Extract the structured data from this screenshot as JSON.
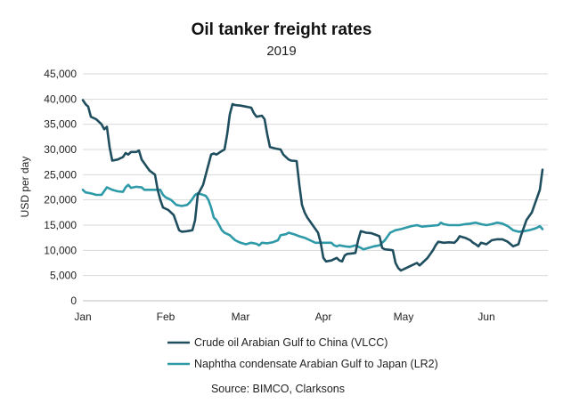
{
  "chart_data": {
    "type": "line",
    "title": "Oil tanker freight rates",
    "subtitle": "2019",
    "ylabel": "USD per day",
    "xlabel": "",
    "ylim": [
      0,
      45000
    ],
    "yticks": [
      0,
      5000,
      10000,
      15000,
      20000,
      25000,
      30000,
      35000,
      40000,
      45000
    ],
    "ytick_labels": [
      "0",
      "5,000",
      "10,000",
      "15,000",
      "20,000",
      "25,000",
      "30,000",
      "35,000",
      "40,000",
      "45,000"
    ],
    "xlim": [
      "2019-01-01",
      "2019-06-24"
    ],
    "xticks": [
      {
        "label": "Jan",
        "date": "2019-01-01"
      },
      {
        "label": "Feb",
        "date": "2019-02-01"
      },
      {
        "label": "Mar",
        "date": "2019-03-01"
      },
      {
        "label": "Apr",
        "date": "2019-04-01"
      },
      {
        "label": "May",
        "date": "2019-05-01"
      },
      {
        "label": "Jun",
        "date": "2019-06-01"
      }
    ],
    "grid": true,
    "legend_position": "bottom",
    "series": [
      {
        "name": "Crude oil Arabian Gulf to China (VLCC)",
        "color": "#1f4e5f",
        "points": [
          [
            "2019-01-01",
            39800
          ],
          [
            "2019-01-02",
            39000
          ],
          [
            "2019-01-03",
            38500
          ],
          [
            "2019-01-04",
            36500
          ],
          [
            "2019-01-06",
            36000
          ],
          [
            "2019-01-08",
            35000
          ],
          [
            "2019-01-09",
            34000
          ],
          [
            "2019-01-10",
            34500
          ],
          [
            "2019-01-11",
            30500
          ],
          [
            "2019-01-12",
            27800
          ],
          [
            "2019-01-14",
            28000
          ],
          [
            "2019-01-16",
            28500
          ],
          [
            "2019-01-17",
            29300
          ],
          [
            "2019-01-18",
            29000
          ],
          [
            "2019-01-19",
            29500
          ],
          [
            "2019-01-21",
            29500
          ],
          [
            "2019-01-22",
            29800
          ],
          [
            "2019-01-23",
            28000
          ],
          [
            "2019-01-25",
            26500
          ],
          [
            "2019-01-26",
            25800
          ],
          [
            "2019-01-28",
            25000
          ],
          [
            "2019-01-29",
            22000
          ],
          [
            "2019-01-30",
            20000
          ],
          [
            "2019-01-31",
            18500
          ],
          [
            "2019-02-02",
            18000
          ],
          [
            "2019-02-04",
            17000
          ],
          [
            "2019-02-05",
            15500
          ],
          [
            "2019-02-06",
            14000
          ],
          [
            "2019-02-07",
            13700
          ],
          [
            "2019-02-09",
            13800
          ],
          [
            "2019-02-11",
            14000
          ],
          [
            "2019-02-12",
            16000
          ],
          [
            "2019-02-13",
            21000
          ],
          [
            "2019-02-15",
            23000
          ],
          [
            "2019-02-16",
            25000
          ],
          [
            "2019-02-17",
            27000
          ],
          [
            "2019-02-18",
            29000
          ],
          [
            "2019-02-19",
            29200
          ],
          [
            "2019-02-20",
            29000
          ],
          [
            "2019-02-22",
            29700
          ],
          [
            "2019-02-23",
            30000
          ],
          [
            "2019-02-24",
            33000
          ],
          [
            "2019-02-25",
            37000
          ],
          [
            "2019-02-26",
            39000
          ],
          [
            "2019-02-27",
            38800
          ],
          [
            "2019-03-01",
            38700
          ],
          [
            "2019-03-03",
            38500
          ],
          [
            "2019-03-05",
            38300
          ],
          [
            "2019-03-06",
            37200
          ],
          [
            "2019-03-07",
            36500
          ],
          [
            "2019-03-09",
            36700
          ],
          [
            "2019-03-10",
            36000
          ],
          [
            "2019-03-11",
            33000
          ],
          [
            "2019-03-12",
            30500
          ],
          [
            "2019-03-14",
            30200
          ],
          [
            "2019-03-16",
            30000
          ],
          [
            "2019-03-17",
            29000
          ],
          [
            "2019-03-19",
            28000
          ],
          [
            "2019-03-20",
            27800
          ],
          [
            "2019-03-22",
            27700
          ],
          [
            "2019-03-23",
            23000
          ],
          [
            "2019-03-24",
            19000
          ],
          [
            "2019-03-25",
            17500
          ],
          [
            "2019-03-26",
            16500
          ],
          [
            "2019-03-28",
            15000
          ],
          [
            "2019-03-30",
            13500
          ],
          [
            "2019-03-31",
            11500
          ],
          [
            "2019-04-01",
            8500
          ],
          [
            "2019-04-02",
            7800
          ],
          [
            "2019-04-04",
            8000
          ],
          [
            "2019-04-06",
            8500
          ],
          [
            "2019-04-07",
            8000
          ],
          [
            "2019-04-08",
            7800
          ],
          [
            "2019-04-09",
            9000
          ],
          [
            "2019-04-10",
            9300
          ],
          [
            "2019-04-12",
            9400
          ],
          [
            "2019-04-13",
            9500
          ],
          [
            "2019-04-14",
            12000
          ],
          [
            "2019-04-15",
            13800
          ],
          [
            "2019-04-17",
            13500
          ],
          [
            "2019-04-19",
            13400
          ],
          [
            "2019-04-21",
            13000
          ],
          [
            "2019-04-22",
            12800
          ],
          [
            "2019-04-23",
            10500
          ],
          [
            "2019-04-24",
            10200
          ],
          [
            "2019-04-26",
            10100
          ],
          [
            "2019-04-27",
            10000
          ],
          [
            "2019-04-28",
            7500
          ],
          [
            "2019-04-29",
            6500
          ],
          [
            "2019-04-30",
            6000
          ],
          [
            "2019-05-02",
            6500
          ],
          [
            "2019-05-04",
            7000
          ],
          [
            "2019-05-06",
            7500
          ],
          [
            "2019-05-07",
            7000
          ],
          [
            "2019-05-08",
            7500
          ],
          [
            "2019-05-10",
            8500
          ],
          [
            "2019-05-12",
            10000
          ],
          [
            "2019-05-13",
            11000
          ],
          [
            "2019-05-14",
            11700
          ],
          [
            "2019-05-16",
            11500
          ],
          [
            "2019-05-18",
            11600
          ],
          [
            "2019-05-20",
            11500
          ],
          [
            "2019-05-21",
            12000
          ],
          [
            "2019-05-22",
            12800
          ],
          [
            "2019-05-24",
            12500
          ],
          [
            "2019-05-26",
            12000
          ],
          [
            "2019-05-27",
            11500
          ],
          [
            "2019-05-28",
            11200
          ],
          [
            "2019-05-29",
            10800
          ],
          [
            "2019-05-30",
            11500
          ],
          [
            "2019-06-01",
            11200
          ],
          [
            "2019-06-03",
            12000
          ],
          [
            "2019-06-05",
            12200
          ],
          [
            "2019-06-07",
            12200
          ],
          [
            "2019-06-09",
            11700
          ],
          [
            "2019-06-11",
            10800
          ],
          [
            "2019-06-13",
            11200
          ],
          [
            "2019-06-14",
            13000
          ],
          [
            "2019-06-15",
            14500
          ],
          [
            "2019-06-16",
            16000
          ],
          [
            "2019-06-18",
            17500
          ],
          [
            "2019-06-20",
            20500
          ],
          [
            "2019-06-21",
            22000
          ],
          [
            "2019-06-22",
            26000
          ]
        ]
      },
      {
        "name": "Naphtha condensate Arabian Gulf to Japan (LR2)",
        "color": "#2e9aa8",
        "points": [
          [
            "2019-01-01",
            22000
          ],
          [
            "2019-01-02",
            21500
          ],
          [
            "2019-01-04",
            21300
          ],
          [
            "2019-01-06",
            21000
          ],
          [
            "2019-01-08",
            21000
          ],
          [
            "2019-01-10",
            22500
          ],
          [
            "2019-01-12",
            22000
          ],
          [
            "2019-01-14",
            21700
          ],
          [
            "2019-01-16",
            21600
          ],
          [
            "2019-01-17",
            22500
          ],
          [
            "2019-01-18",
            23000
          ],
          [
            "2019-01-19",
            22400
          ],
          [
            "2019-01-21",
            22600
          ],
          [
            "2019-01-23",
            22500
          ],
          [
            "2019-01-24",
            22000
          ],
          [
            "2019-01-26",
            22000
          ],
          [
            "2019-01-28",
            22000
          ],
          [
            "2019-01-30",
            22000
          ],
          [
            "2019-01-31",
            21000
          ],
          [
            "2019-02-01",
            20500
          ],
          [
            "2019-02-03",
            20000
          ],
          [
            "2019-02-05",
            19000
          ],
          [
            "2019-02-07",
            18800
          ],
          [
            "2019-02-09",
            19000
          ],
          [
            "2019-02-10",
            19500
          ],
          [
            "2019-02-11",
            20200
          ],
          [
            "2019-02-12",
            21000
          ],
          [
            "2019-02-13",
            21300
          ],
          [
            "2019-02-15",
            21000
          ],
          [
            "2019-02-16",
            20800
          ],
          [
            "2019-02-17",
            20000
          ],
          [
            "2019-02-18",
            18500
          ],
          [
            "2019-02-19",
            16500
          ],
          [
            "2019-02-20",
            16000
          ],
          [
            "2019-02-21",
            15000
          ],
          [
            "2019-02-22",
            14000
          ],
          [
            "2019-02-23",
            13500
          ],
          [
            "2019-02-25",
            13000
          ],
          [
            "2019-02-26",
            12500
          ],
          [
            "2019-02-27",
            12000
          ],
          [
            "2019-03-01",
            11500
          ],
          [
            "2019-03-03",
            11200
          ],
          [
            "2019-03-05",
            11500
          ],
          [
            "2019-03-07",
            11300
          ],
          [
            "2019-03-08",
            11000
          ],
          [
            "2019-03-09",
            11500
          ],
          [
            "2019-03-11",
            11400
          ],
          [
            "2019-03-13",
            11600
          ],
          [
            "2019-03-15",
            12000
          ],
          [
            "2019-03-16",
            13000
          ],
          [
            "2019-03-18",
            13200
          ],
          [
            "2019-03-19",
            13500
          ],
          [
            "2019-03-21",
            13200
          ],
          [
            "2019-03-23",
            12800
          ],
          [
            "2019-03-25",
            12500
          ],
          [
            "2019-03-27",
            12000
          ],
          [
            "2019-03-29",
            11500
          ],
          [
            "2019-03-31",
            11500
          ],
          [
            "2019-04-02",
            11500
          ],
          [
            "2019-04-04",
            11500
          ],
          [
            "2019-04-05",
            11000
          ],
          [
            "2019-04-06",
            10800
          ],
          [
            "2019-04-07",
            11000
          ],
          [
            "2019-04-09",
            10800
          ],
          [
            "2019-04-11",
            10700
          ],
          [
            "2019-04-13",
            11000
          ],
          [
            "2019-04-15",
            10500
          ],
          [
            "2019-04-16",
            10200
          ],
          [
            "2019-04-18",
            10500
          ],
          [
            "2019-04-20",
            10800
          ],
          [
            "2019-04-22",
            11000
          ],
          [
            "2019-04-24",
            12000
          ],
          [
            "2019-04-26",
            13500
          ],
          [
            "2019-04-28",
            14000
          ],
          [
            "2019-04-30",
            14200
          ],
          [
            "2019-05-02",
            14500
          ],
          [
            "2019-05-04",
            14800
          ],
          [
            "2019-05-06",
            15000
          ],
          [
            "2019-05-08",
            14700
          ],
          [
            "2019-05-10",
            14800
          ],
          [
            "2019-05-12",
            14900
          ],
          [
            "2019-05-14",
            15000
          ],
          [
            "2019-05-15",
            15500
          ],
          [
            "2019-05-16",
            15200
          ],
          [
            "2019-05-18",
            15000
          ],
          [
            "2019-05-20",
            15000
          ],
          [
            "2019-05-22",
            15000
          ],
          [
            "2019-05-24",
            15200
          ],
          [
            "2019-05-26",
            15300
          ],
          [
            "2019-05-28",
            15500
          ],
          [
            "2019-05-30",
            15200
          ],
          [
            "2019-06-01",
            15000
          ],
          [
            "2019-06-03",
            15200
          ],
          [
            "2019-06-05",
            15500
          ],
          [
            "2019-06-07",
            15300
          ],
          [
            "2019-06-09",
            14800
          ],
          [
            "2019-06-11",
            14000
          ],
          [
            "2019-06-13",
            13700
          ],
          [
            "2019-06-15",
            13800
          ],
          [
            "2019-06-17",
            14000
          ],
          [
            "2019-06-19",
            14300
          ],
          [
            "2019-06-20",
            14500
          ],
          [
            "2019-06-21",
            14800
          ],
          [
            "2019-06-22",
            14200
          ]
        ]
      }
    ],
    "source": "Source: BIMCO, Clarksons"
  }
}
